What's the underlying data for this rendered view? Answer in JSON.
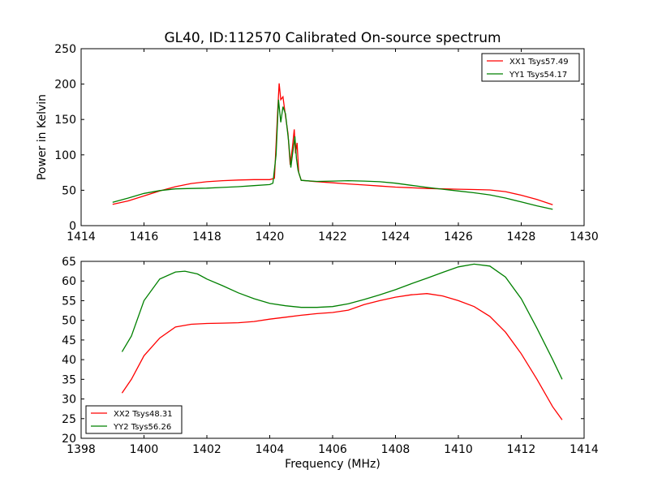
{
  "chart_data": [
    {
      "type": "line",
      "title": "GL40, ID:112570 Calibrated On-source spectrum",
      "xlabel": "",
      "ylabel": "Power in Kelvin",
      "xlim": [
        1414,
        1430
      ],
      "ylim": [
        0,
        250
      ],
      "xticks": [
        1414,
        1416,
        1418,
        1420,
        1422,
        1424,
        1426,
        1428,
        1430
      ],
      "yticks": [
        0,
        50,
        100,
        150,
        200,
        250
      ],
      "legend": "top-right",
      "grid": false,
      "series": [
        {
          "name": "XX1 Tsys57.49",
          "color": "#ff0000",
          "points": [
            [
              1415,
              30
            ],
            [
              1415.5,
              35
            ],
            [
              1416,
              42
            ],
            [
              1416.5,
              49
            ],
            [
              1417,
              55
            ],
            [
              1417.5,
              59.5
            ],
            [
              1418,
              62
            ],
            [
              1418.5,
              63.5
            ],
            [
              1419,
              64.5
            ],
            [
              1419.5,
              65
            ],
            [
              1420,
              65
            ],
            [
              1420.15,
              67
            ],
            [
              1420.25,
              160
            ],
            [
              1420.3,
              201
            ],
            [
              1420.35,
              178
            ],
            [
              1420.42,
              182
            ],
            [
              1420.5,
              155
            ],
            [
              1420.58,
              130
            ],
            [
              1420.65,
              86
            ],
            [
              1420.72,
              110
            ],
            [
              1420.78,
              136
            ],
            [
              1420.82,
              102
            ],
            [
              1420.87,
              117
            ],
            [
              1420.92,
              75
            ],
            [
              1421,
              64
            ],
            [
              1421.5,
              62
            ],
            [
              1422,
              60.5
            ],
            [
              1422.5,
              59
            ],
            [
              1423,
              57.5
            ],
            [
              1423.5,
              56
            ],
            [
              1424,
              54.5
            ],
            [
              1424.5,
              53.5
            ],
            [
              1425,
              52.5
            ],
            [
              1425.5,
              52
            ],
            [
              1426,
              51.5
            ],
            [
              1426.5,
              51
            ],
            [
              1427,
              50.5
            ],
            [
              1427.5,
              48
            ],
            [
              1428,
              43
            ],
            [
              1428.5,
              37
            ],
            [
              1429,
              29.5
            ]
          ]
        },
        {
          "name": "YY1 Tsys54.17",
          "color": "#008000",
          "points": [
            [
              1415,
              33
            ],
            [
              1415.5,
              39
            ],
            [
              1416,
              45.5
            ],
            [
              1416.5,
              49.5
            ],
            [
              1417,
              52
            ],
            [
              1417.5,
              52.5
            ],
            [
              1418,
              53
            ],
            [
              1418.5,
              54
            ],
            [
              1419,
              55
            ],
            [
              1419.5,
              56.5
            ],
            [
              1420,
              58
            ],
            [
              1420.1,
              60
            ],
            [
              1420.2,
              100
            ],
            [
              1420.28,
              178
            ],
            [
              1420.35,
              146
            ],
            [
              1420.42,
              168
            ],
            [
              1420.5,
              158
            ],
            [
              1420.6,
              120
            ],
            [
              1420.67,
              82
            ],
            [
              1420.73,
              103
            ],
            [
              1420.8,
              126
            ],
            [
              1420.85,
              95
            ],
            [
              1420.9,
              78
            ],
            [
              1421,
              64
            ],
            [
              1421.5,
              62.5
            ],
            [
              1422,
              63
            ],
            [
              1422.5,
              63.5
            ],
            [
              1423,
              63
            ],
            [
              1423.5,
              62
            ],
            [
              1424,
              60
            ],
            [
              1424.5,
              57
            ],
            [
              1425,
              54
            ],
            [
              1425.5,
              51.5
            ],
            [
              1426,
              49
            ],
            [
              1426.5,
              46.5
            ],
            [
              1427,
              43.5
            ],
            [
              1427.5,
              39
            ],
            [
              1428,
              33.5
            ],
            [
              1428.5,
              28
            ],
            [
              1429,
              23
            ]
          ]
        }
      ]
    },
    {
      "type": "line",
      "title": "",
      "xlabel": "Frequency (MHz)",
      "ylabel": "",
      "xlim": [
        1398,
        1414
      ],
      "ylim": [
        20,
        65
      ],
      "xticks": [
        1398,
        1400,
        1402,
        1404,
        1406,
        1408,
        1410,
        1412,
        1414
      ],
      "yticks": [
        20,
        25,
        30,
        35,
        40,
        45,
        50,
        55,
        60,
        65
      ],
      "legend": "bottom-left",
      "grid": false,
      "series": [
        {
          "name": "XX2 Tsys48.31",
          "color": "#ff0000",
          "points": [
            [
              1399.3,
              31.5
            ],
            [
              1399.6,
              35
            ],
            [
              1400,
              41
            ],
            [
              1400.5,
              45.5
            ],
            [
              1401,
              48.3
            ],
            [
              1401.5,
              49
            ],
            [
              1402,
              49.2
            ],
            [
              1402.5,
              49.3
            ],
            [
              1403,
              49.4
            ],
            [
              1403.5,
              49.7
            ],
            [
              1404,
              50.3
            ],
            [
              1404.5,
              50.8
            ],
            [
              1405,
              51.3
            ],
            [
              1405.5,
              51.7
            ],
            [
              1406,
              52
            ],
            [
              1406.5,
              52.6
            ],
            [
              1407,
              54
            ],
            [
              1407.5,
              55
            ],
            [
              1408,
              55.9
            ],
            [
              1408.5,
              56.5
            ],
            [
              1409,
              56.8
            ],
            [
              1409.5,
              56.2
            ],
            [
              1410,
              55
            ],
            [
              1410.5,
              53.5
            ],
            [
              1411,
              51
            ],
            [
              1411.5,
              47
            ],
            [
              1412,
              41.5
            ],
            [
              1412.5,
              35
            ],
            [
              1413,
              28
            ],
            [
              1413.3,
              24.7
            ]
          ]
        },
        {
          "name": "YY2 Tsys56.26",
          "color": "#008000",
          "points": [
            [
              1399.3,
              42
            ],
            [
              1399.6,
              46
            ],
            [
              1400,
              55
            ],
            [
              1400.5,
              60.5
            ],
            [
              1401,
              62.3
            ],
            [
              1401.3,
              62.5
            ],
            [
              1401.7,
              61.8
            ],
            [
              1402,
              60.5
            ],
            [
              1402.5,
              58.8
            ],
            [
              1403,
              57
            ],
            [
              1403.5,
              55.5
            ],
            [
              1404,
              54.3
            ],
            [
              1404.5,
              53.7
            ],
            [
              1405,
              53.3
            ],
            [
              1405.5,
              53.3
            ],
            [
              1406,
              53.5
            ],
            [
              1406.5,
              54.2
            ],
            [
              1407,
              55.3
            ],
            [
              1407.5,
              56.5
            ],
            [
              1408,
              57.8
            ],
            [
              1408.5,
              59.3
            ],
            [
              1409,
              60.7
            ],
            [
              1409.5,
              62.2
            ],
            [
              1410,
              63.6
            ],
            [
              1410.5,
              64.3
            ],
            [
              1411,
              63.8
            ],
            [
              1411.5,
              61
            ],
            [
              1412,
              55.5
            ],
            [
              1412.5,
              48
            ],
            [
              1413,
              40
            ],
            [
              1413.3,
              35
            ]
          ]
        }
      ]
    }
  ]
}
